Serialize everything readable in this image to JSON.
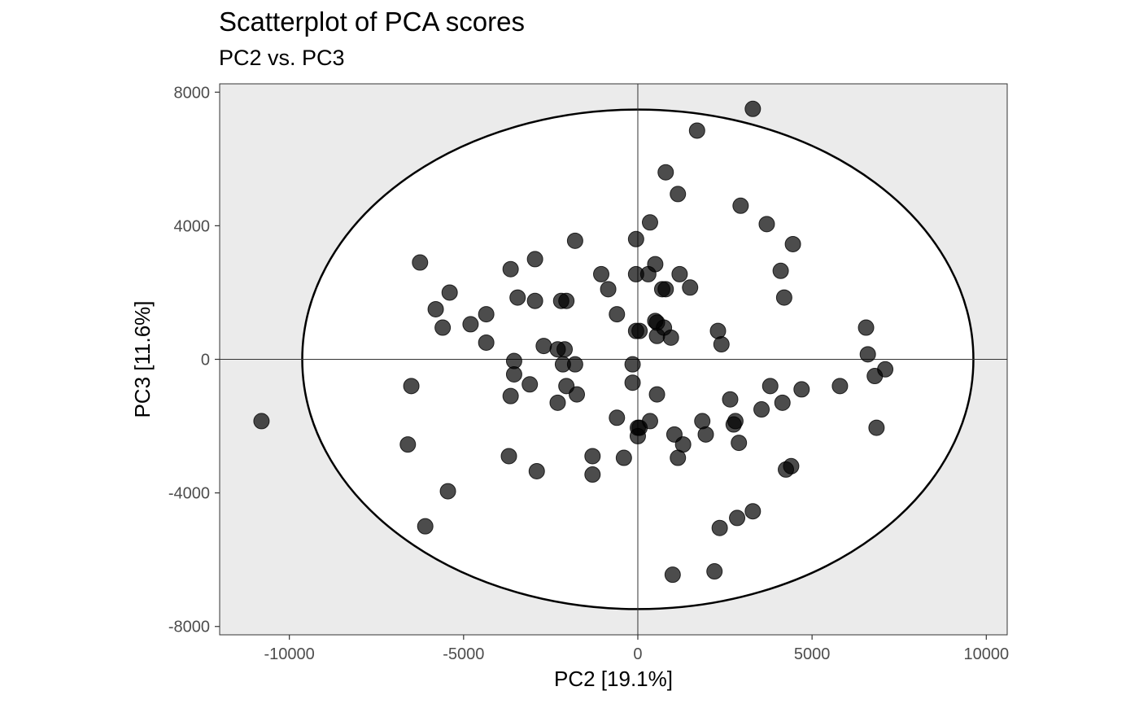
{
  "chart_data": {
    "type": "scatter",
    "title": "Scatterplot of PCA scores",
    "subtitle": "PC2 vs. PC3",
    "xlabel": "PC2 [19.1%]",
    "ylabel": "PC3 [11.6%]",
    "xlim": [
      -12000,
      10600
    ],
    "ylim": [
      -8250,
      8250
    ],
    "x_ticks": [
      -10000,
      -5000,
      0,
      5000,
      10000
    ],
    "x_tick_labels": [
      "-10000",
      "-5000",
      "0",
      "5000",
      "10000"
    ],
    "y_ticks": [
      -8000,
      -4000,
      0,
      4000,
      8000
    ],
    "y_tick_labels": [
      "-8000",
      "-4000",
      "0",
      "4000",
      "8000"
    ],
    "ellipse": {
      "cx": 0,
      "cy": 0,
      "rx": 9630,
      "ry": 7480
    },
    "reference_lines": {
      "x": 0,
      "y": 0
    },
    "colors": {
      "panel": "#ebebeb",
      "ellipse_fill": "#ffffff",
      "point": "#000000",
      "point_opacity": 0.7
    },
    "points": [
      [
        3300,
        7500
      ],
      [
        1700,
        6850
      ],
      [
        800,
        5600
      ],
      [
        1150,
        4950
      ],
      [
        2950,
        4600
      ],
      [
        350,
        4100
      ],
      [
        3700,
        4050
      ],
      [
        4450,
        3450
      ],
      [
        -1800,
        3550
      ],
      [
        -50,
        3600
      ],
      [
        -6250,
        2900
      ],
      [
        -2950,
        3000
      ],
      [
        -3650,
        2700
      ],
      [
        500,
        2850
      ],
      [
        4100,
        2650
      ],
      [
        -1050,
        2550
      ],
      [
        300,
        2550
      ],
      [
        1200,
        2550
      ],
      [
        -50,
        2550
      ],
      [
        -5400,
        2000
      ],
      [
        -850,
        2100
      ],
      [
        700,
        2100
      ],
      [
        800,
        2100
      ],
      [
        1500,
        2150
      ],
      [
        4200,
        1850
      ],
      [
        -3450,
        1850
      ],
      [
        -2950,
        1750
      ],
      [
        -2200,
        1750
      ],
      [
        -2050,
        1750
      ],
      [
        -5800,
        1500
      ],
      [
        -4350,
        1350
      ],
      [
        -600,
        1350
      ],
      [
        500,
        1150
      ],
      [
        550,
        1100
      ],
      [
        -4800,
        1050
      ],
      [
        -5600,
        950
      ],
      [
        750,
        950
      ],
      [
        -50,
        850
      ],
      [
        50,
        850
      ],
      [
        2300,
        850
      ],
      [
        6550,
        950
      ],
      [
        550,
        700
      ],
      [
        950,
        650
      ],
      [
        -4350,
        500
      ],
      [
        2400,
        450
      ],
      [
        -2700,
        400
      ],
      [
        -2300,
        300
      ],
      [
        -2100,
        300
      ],
      [
        6600,
        150
      ],
      [
        -3550,
        -50
      ],
      [
        -2150,
        -150
      ],
      [
        -1800,
        -150
      ],
      [
        -150,
        -150
      ],
      [
        7100,
        -300
      ],
      [
        6800,
        -500
      ],
      [
        -3550,
        -450
      ],
      [
        -6500,
        -800
      ],
      [
        -3100,
        -750
      ],
      [
        -2050,
        -800
      ],
      [
        -150,
        -700
      ],
      [
        3800,
        -800
      ],
      [
        5800,
        -800
      ],
      [
        4700,
        -900
      ],
      [
        -1750,
        -1050
      ],
      [
        550,
        -1050
      ],
      [
        -3650,
        -1100
      ],
      [
        2650,
        -1200
      ],
      [
        -2300,
        -1300
      ],
      [
        4150,
        -1300
      ],
      [
        3550,
        -1500
      ],
      [
        -10800,
        -1850
      ],
      [
        -600,
        -1750
      ],
      [
        350,
        -1850
      ],
      [
        1850,
        -1850
      ],
      [
        2800,
        -1850
      ],
      [
        2750,
        -1950
      ],
      [
        6850,
        -2050
      ],
      [
        0,
        -2050
      ],
      [
        50,
        -2050
      ],
      [
        1050,
        -2250
      ],
      [
        1950,
        -2250
      ],
      [
        0,
        -2300
      ],
      [
        -6600,
        -2550
      ],
      [
        1300,
        -2550
      ],
      [
        2900,
        -2500
      ],
      [
        -3700,
        -2900
      ],
      [
        -1300,
        -2900
      ],
      [
        -400,
        -2950
      ],
      [
        1150,
        -2950
      ],
      [
        -2900,
        -3350
      ],
      [
        -1300,
        -3450
      ],
      [
        4400,
        -3200
      ],
      [
        4250,
        -3300
      ],
      [
        -5450,
        -3950
      ],
      [
        3300,
        -4550
      ],
      [
        2850,
        -4750
      ],
      [
        -6100,
        -5000
      ],
      [
        2350,
        -5050
      ],
      [
        2200,
        -6350
      ],
      [
        1000,
        -6450
      ]
    ]
  }
}
